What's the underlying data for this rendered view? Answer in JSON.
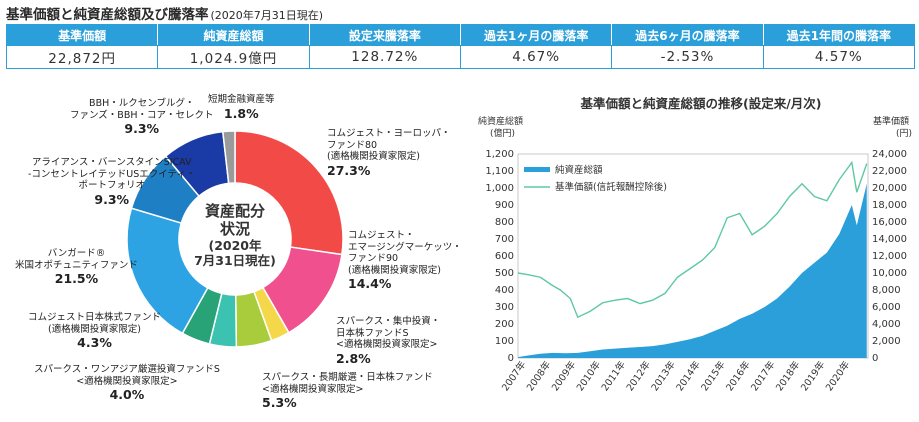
{
  "header": {
    "title": "基準価額と純資産総額及び騰落率",
    "date": "(2020年7月31日現在)"
  },
  "stats": {
    "headers": [
      "基準価額",
      "純資産総額",
      "設定来騰落率",
      "過去1ヶ月の騰落率",
      "過去6ヶ月の騰落率",
      "過去1年間の騰落率"
    ],
    "values": [
      "22,872円",
      "1,024.9億円",
      "128.72%",
      "4.67%",
      "-2.53%",
      "4.57%"
    ]
  },
  "allocation": {
    "center": {
      "line1": "資産配分",
      "line2": "状況",
      "line3": "(2020年",
      "line4": "7月31日現在)"
    },
    "labels": [
      {
        "text": "コムジェスト・ヨーロッパ・\nファンド80\n(適格機関投資家限定)",
        "pct": "27.3%"
      },
      {
        "text": "コムジェスト・\nエマージングマーケッツ・\nファンド90\n(適格機関投資家限定)",
        "pct": "14.4%"
      },
      {
        "text": "スパークス・集中投資・\n日本株ファンドS\n<適格機関投資家限定>",
        "pct": "2.8%"
      },
      {
        "text": "スパークス・長期厳選・日本株ファンド\n<適格機関投資家限定>",
        "pct": "5.3%"
      },
      {
        "text": "スパークス・ワンアジア厳選投資ファンドS\n<適格機関投資家限定>",
        "pct": "4.0%"
      },
      {
        "text": "コムジェスト日本株式ファンド\n(適格機関投資家限定)",
        "pct": "4.3%"
      },
      {
        "text": "バンガード®\n米国オポチュニティファンド",
        "pct": "21.5%"
      },
      {
        "text": "アライアンス・バーンスタインSICAV\n-コンセントレイテッドUSエクイティ・\nポートフォリオ",
        "pct": "9.3%"
      },
      {
        "text": "BBH・ルクセンブルグ・\nファンズ・BBH・コア・セレクト",
        "pct": "9.3%"
      },
      {
        "text": "短期金融資産等",
        "pct": "1.8%"
      }
    ]
  },
  "chart_data": [
    {
      "type": "pie",
      "categories": [
        "コムジェスト・ヨーロッパ・ファンド80",
        "コムジェスト・エマージングマーケッツ・ファンド90",
        "スパークス・集中投資・日本株ファンドS",
        "スパークス・長期厳選・日本株ファンド",
        "スパークス・ワンアジア厳選投資ファンドS",
        "コムジェスト日本株式ファンド",
        "バンガード®米国オポチュニティファンド",
        "アライアンス・バーンスタインSICAV-コンセントレイテッドUSエクイティ・ポートフォリオ",
        "BBH・ルクセンブルグ・ファンズ・BBH・コア・セレクト",
        "短期金融資産等"
      ],
      "values": [
        27.3,
        14.4,
        2.8,
        5.3,
        4.0,
        4.3,
        21.5,
        9.3,
        9.3,
        1.8
      ],
      "colors": [
        "#f24b47",
        "#f0508e",
        "#f5d84a",
        "#a8cc3c",
        "#3cc2b0",
        "#27a377",
        "#2da3e3",
        "#1e7fc4",
        "#1a3aa6",
        "#9a9a9a"
      ]
    },
    {
      "type": "area",
      "title": "基準価額と純資産総額の推移(設定来/月次)",
      "ylabel": "純資産総額\n(億円)",
      "y2label": "基準価額\n(円)",
      "ylim": [
        0,
        1200
      ],
      "y2lim": [
        0,
        24000
      ],
      "yticks": [
        "0",
        "100",
        "200",
        "300",
        "400",
        "500",
        "600",
        "700",
        "800",
        "900",
        "1,000",
        "1,100",
        "1,200"
      ],
      "y2ticks": [
        "0",
        "2,000",
        "4,000",
        "6,000",
        "8,000",
        "10,000",
        "12,000",
        "14,000",
        "16,000",
        "18,000",
        "20,000",
        "22,000",
        "24,000"
      ],
      "xticks": [
        "2007年",
        "2008年",
        "2009年",
        "2010年",
        "2011年",
        "2012年",
        "2013年",
        "2014年",
        "2015年",
        "2016年",
        "2017年",
        "2018年",
        "2019年",
        "2020年"
      ],
      "legend": "top-left",
      "series": [
        {
          "name": "純資産総額",
          "axis": "left",
          "color": "#2a9fd9",
          "x": [
            2006.6,
            2007.0,
            2007.5,
            2008.0,
            2008.5,
            2009.0,
            2009.5,
            2010.0,
            2010.5,
            2011.0,
            2011.5,
            2012.0,
            2012.5,
            2013.0,
            2013.5,
            2014.0,
            2014.5,
            2015.0,
            2015.5,
            2016.0,
            2016.5,
            2017.0,
            2017.5,
            2018.0,
            2018.5,
            2019.0,
            2019.5,
            2020.0,
            2020.2,
            2020.6
          ],
          "values": [
            5,
            15,
            25,
            30,
            28,
            30,
            40,
            50,
            55,
            60,
            65,
            70,
            80,
            95,
            110,
            130,
            160,
            190,
            230,
            260,
            300,
            350,
            420,
            500,
            560,
            620,
            730,
            900,
            780,
            1025
          ]
        },
        {
          "name": "基準価額(信託報酬控除後)",
          "axis": "right",
          "color": "#5ec9a0",
          "x": [
            2006.6,
            2007.0,
            2007.5,
            2008.0,
            2008.3,
            2008.7,
            2009.0,
            2009.5,
            2010.0,
            2010.5,
            2011.0,
            2011.5,
            2012.0,
            2012.5,
            2013.0,
            2013.5,
            2014.0,
            2014.5,
            2015.0,
            2015.5,
            2016.0,
            2016.5,
            2017.0,
            2017.5,
            2018.0,
            2018.5,
            2019.0,
            2019.5,
            2020.0,
            2020.2,
            2020.6
          ],
          "values": [
            10000,
            9800,
            9500,
            8500,
            8000,
            7000,
            4800,
            5500,
            6500,
            6800,
            7000,
            6400,
            6800,
            7600,
            9500,
            10500,
            11500,
            13000,
            16500,
            17000,
            14500,
            15500,
            17000,
            19000,
            20500,
            19000,
            18500,
            21000,
            23000,
            19500,
            22872
          ]
        }
      ]
    }
  ]
}
